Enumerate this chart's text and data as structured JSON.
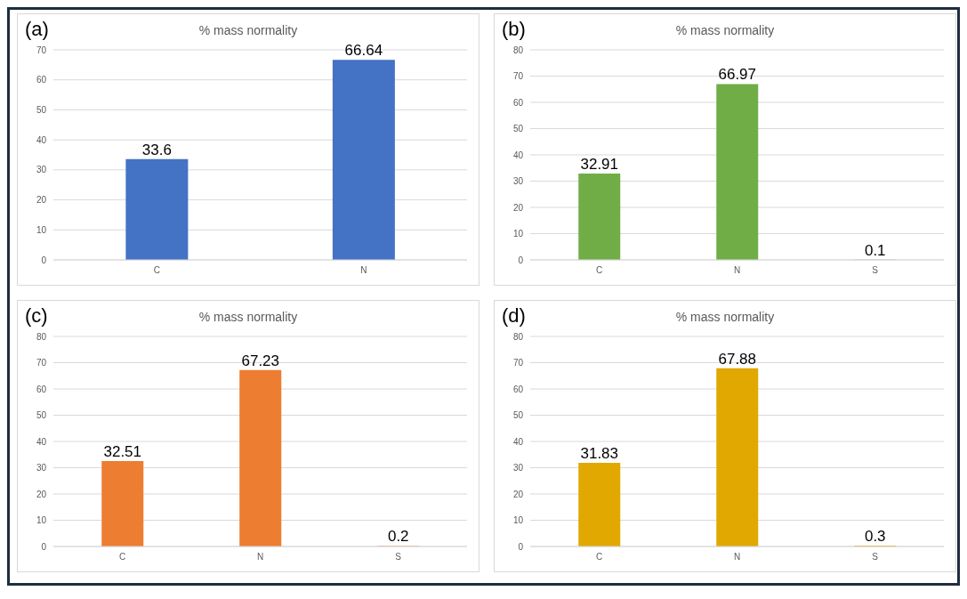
{
  "chart_data": [
    {
      "type": "bar",
      "title": "% mass normality",
      "annotations": [
        "(a)"
      ],
      "categories": [
        "C",
        "N"
      ],
      "values": [
        33.6,
        66.64
      ],
      "color": "#4472c4",
      "ylim": [
        0,
        70
      ],
      "yticks": [
        0,
        10,
        20,
        30,
        40,
        50,
        60,
        70
      ],
      "grid": "y",
      "data_labels": true
    },
    {
      "type": "bar",
      "title": "% mass normality",
      "annotations": [
        "(b)"
      ],
      "categories": [
        "C",
        "N",
        "S"
      ],
      "values": [
        32.91,
        66.97,
        0.1
      ],
      "color": "#70ad47",
      "ylim": [
        0,
        80
      ],
      "yticks": [
        0,
        10,
        20,
        30,
        40,
        50,
        60,
        70,
        80
      ],
      "grid": "y",
      "data_labels": true
    },
    {
      "type": "bar",
      "title": "% mass normality",
      "annotations": [
        "(c)"
      ],
      "categories": [
        "C",
        "N",
        "S"
      ],
      "values": [
        32.51,
        67.23,
        0.2
      ],
      "color": "#ed7d31",
      "ylim": [
        0,
        80
      ],
      "yticks": [
        0,
        10,
        20,
        30,
        40,
        50,
        60,
        70,
        80
      ],
      "grid": "y",
      "data_labels": true
    },
    {
      "type": "bar",
      "title": "% mass normality",
      "annotations": [
        "(d)"
      ],
      "categories": [
        "C",
        "N",
        "S"
      ],
      "values": [
        31.83,
        67.88,
        0.3
      ],
      "color": "#e0a800",
      "ylim": [
        0,
        80
      ],
      "yticks": [
        0,
        10,
        20,
        30,
        40,
        50,
        60,
        70,
        80
      ],
      "grid": "y",
      "data_labels": true
    }
  ]
}
